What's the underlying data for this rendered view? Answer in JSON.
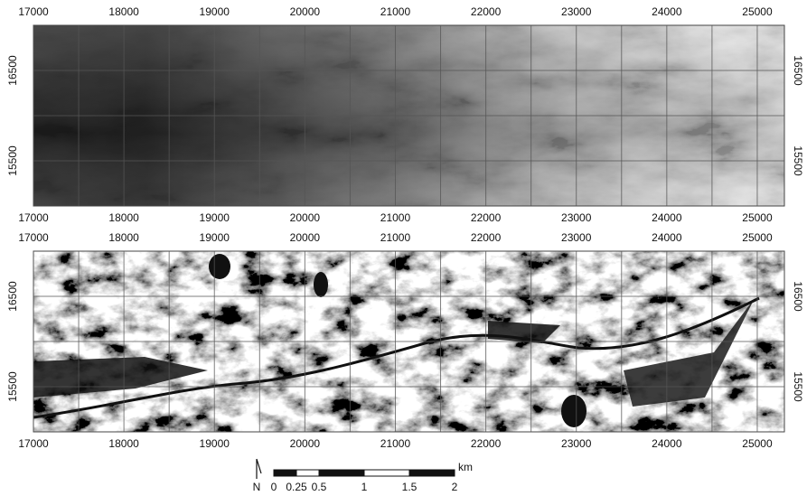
{
  "panels": [
    {
      "xlim": [
        17000,
        25300
      ],
      "ylim": [
        15000,
        17000
      ],
      "xticks": [
        17000,
        18000,
        19000,
        20000,
        21000,
        22000,
        23000,
        24000,
        25000
      ],
      "yticks": [
        16500,
        15500
      ]
    },
    {
      "xlim": [
        17000,
        25300
      ],
      "ylim": [
        15000,
        17000
      ],
      "xticks": [
        17000,
        18000,
        19000,
        20000,
        21000,
        22000,
        23000,
        24000,
        25000
      ],
      "yticks": [
        16500,
        15500
      ]
    }
  ],
  "scale_bar": {
    "ticks": [
      0,
      0.25,
      0.5,
      1,
      1.5,
      2
    ],
    "unit": "km"
  },
  "north_label": "N"
}
